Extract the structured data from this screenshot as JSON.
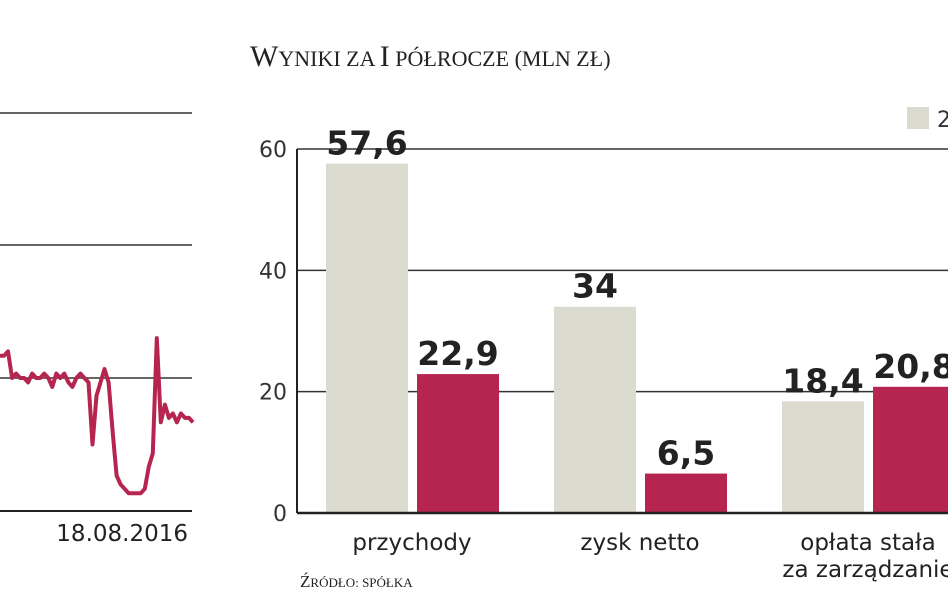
{
  "title": "Wyniki za I półrocze (mln zł)",
  "source": "Źródło: spółka",
  "left_chart": {
    "type": "line",
    "x_label": "18.08.2016",
    "values": [
      35,
      35,
      36,
      30,
      31,
      30,
      30,
      29,
      31,
      30,
      30,
      31,
      30,
      28,
      31,
      30,
      31,
      29,
      28,
      30,
      31,
      30,
      29,
      15,
      26,
      29,
      32,
      29,
      18,
      8,
      6,
      5,
      4,
      4,
      4,
      4,
      5,
      10,
      13,
      39,
      20,
      24,
      21,
      22,
      20,
      22,
      21,
      21,
      20
    ],
    "colors": {
      "line": "#b5254f"
    }
  },
  "chart_data": {
    "type": "bar",
    "categories": [
      "przychody",
      "zysk netto",
      "opłata stała\nza zarządzanie"
    ],
    "ylim": [
      0,
      60
    ],
    "yticks": [
      0,
      20,
      40,
      60
    ],
    "series": [
      {
        "values": [
          57.6,
          34,
          18.4
        ],
        "labels": [
          "57,6",
          "34",
          "18,4"
        ]
      },
      {
        "values": [
          22.9,
          6.5,
          20.8
        ],
        "labels": [
          "22,9",
          "6,5",
          "20,8"
        ]
      }
    ],
    "legend": {
      "entries": [
        "2"
      ],
      "placement": "top-right"
    },
    "colors": {
      "series_0": "#dcdbd0",
      "series_1": "#b5254f",
      "grid": "#333333",
      "axis": "#222222"
    }
  }
}
